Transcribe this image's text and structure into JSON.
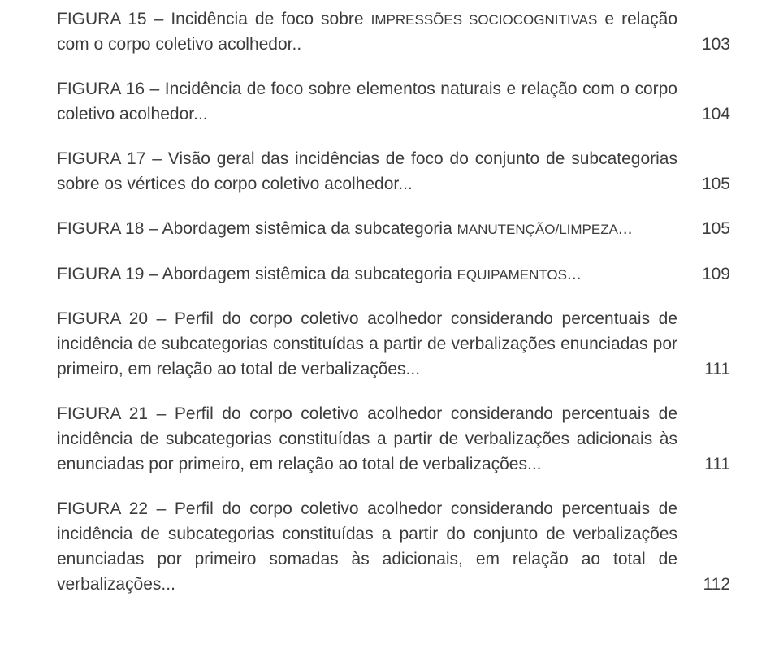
{
  "entries": [
    {
      "prefix": "FIGURA 15 – Incidência de foco sobre ",
      "small": "IMPRESSÕES SOCIOCOGNITIVAS",
      "suffix": " e relação com o corpo coletivo acolhedor..",
      "page": "103"
    },
    {
      "prefix": "FIGURA 16 – Incidência de foco sobre elementos naturais e relação com o corpo coletivo acolhedor...",
      "small": "",
      "suffix": "",
      "page": "104"
    },
    {
      "prefix": "FIGURA 17 – Visão geral das incidências de foco do conjunto de subcategorias sobre os vértices do corpo coletivo acolhedor...",
      "small": "",
      "suffix": "",
      "page": "105"
    },
    {
      "prefix": "FIGURA 18 – Abordagem sistêmica da subcategoria ",
      "small": "MANUTENÇÃO/LIMPEZA",
      "suffix": "...",
      "page": "105"
    },
    {
      "prefix": "FIGURA 19 – Abordagem sistêmica da subcategoria ",
      "small": "EQUIPAMENTOS",
      "suffix": "...",
      "page": "109"
    },
    {
      "prefix": "FIGURA 20 – Perfil do corpo coletivo acolhedor considerando percentuais de incidência de subcategorias constituídas a partir de verbalizações enunciadas por primeiro, em relação ao total de verbalizações...",
      "small": "",
      "suffix": "",
      "page": "111"
    },
    {
      "prefix": "FIGURA 21 – Perfil do corpo coletivo acolhedor considerando percentuais de incidência de subcategorias constituídas a partir de verbalizações adicionais às enunciadas por primeiro, em relação ao total de verbalizações...",
      "small": "",
      "suffix": "",
      "page": "111"
    },
    {
      "prefix": "FIGURA 22 – Perfil do corpo coletivo acolhedor considerando percentuais de incidência de subcategorias constituídas a partir do conjunto de verbalizações enunciadas por primeiro somadas às adicionais, em relação ao total de verbalizações...",
      "small": "",
      "suffix": "",
      "page": "112"
    }
  ]
}
